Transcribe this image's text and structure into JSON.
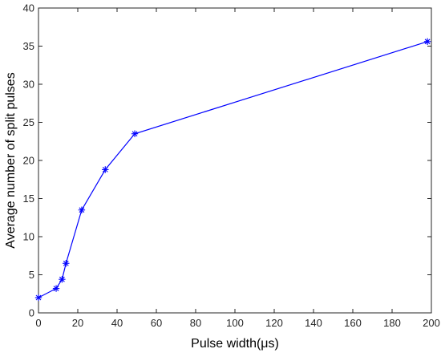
{
  "chart_data": {
    "type": "line",
    "title": "",
    "xlabel": "Pulse width(μs)",
    "ylabel": "Average number of split pulses",
    "xlim": [
      0,
      200
    ],
    "ylim": [
      0,
      40
    ],
    "xticks": [
      0,
      20,
      40,
      60,
      80,
      100,
      120,
      140,
      160,
      180,
      200
    ],
    "yticks": [
      0,
      5,
      10,
      15,
      20,
      25,
      30,
      35,
      40
    ],
    "grid": false,
    "legend": "none",
    "series": [
      {
        "color": "#0000ff",
        "marker": "asterisk",
        "x": [
          0,
          9,
          12,
          14,
          22,
          34,
          49,
          198
        ],
        "y": [
          2.0,
          3.2,
          4.4,
          6.5,
          13.5,
          18.8,
          23.5,
          35.6
        ]
      }
    ]
  }
}
